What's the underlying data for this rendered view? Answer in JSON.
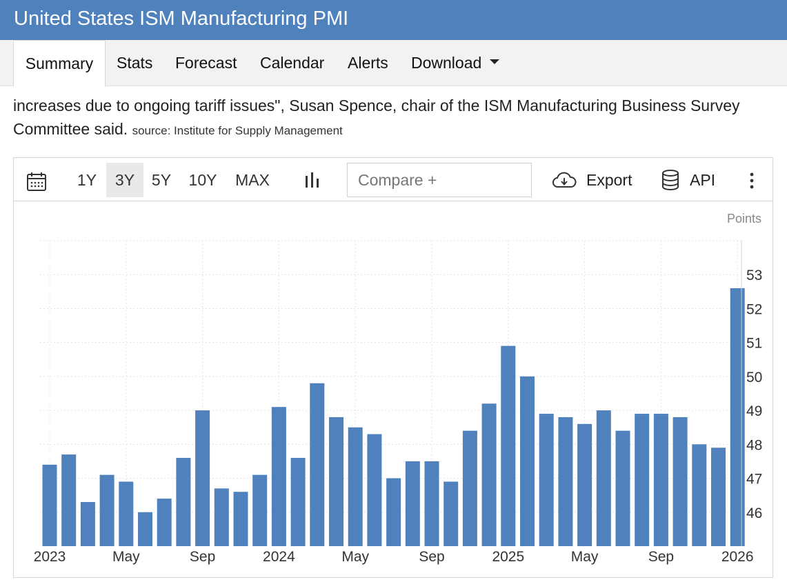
{
  "header": {
    "title": "United States ISM Manufacturing PMI"
  },
  "tabs": [
    {
      "label": "Summary",
      "active": true
    },
    {
      "label": "Stats"
    },
    {
      "label": "Forecast"
    },
    {
      "label": "Calendar"
    },
    {
      "label": "Alerts"
    },
    {
      "label": "Download"
    }
  ],
  "summary": {
    "line2": "increases due to ongoing tariff issues\", Susan Spence, chair of the ISM Manufacturing Business Survey",
    "line3": "Committee said.",
    "source": "source: Institute for Supply Management"
  },
  "toolbar": {
    "ranges": [
      "1Y",
      "3Y",
      "5Y",
      "10Y",
      "MAX"
    ],
    "active_range": "3Y",
    "compare_placeholder": "Compare +",
    "export_label": "Export",
    "api_label": "API",
    "icons": [
      "calendar-icon",
      "bar-chart-icon",
      "cloud-download-icon",
      "database-icon",
      "more-vertical-icon"
    ]
  },
  "chart_data": {
    "type": "bar",
    "units": "Points",
    "color": "#4f82bd",
    "ylim": [
      45,
      54
    ],
    "yticks": [
      46,
      47,
      48,
      49,
      50,
      51,
      52,
      53
    ],
    "x_tick_labels": [
      {
        "index": 0,
        "label": "2023"
      },
      {
        "index": 4,
        "label": "May"
      },
      {
        "index": 8,
        "label": "Sep"
      },
      {
        "index": 12,
        "label": "2024"
      },
      {
        "index": 16,
        "label": "May"
      },
      {
        "index": 20,
        "label": "Sep"
      },
      {
        "index": 24,
        "label": "2025"
      },
      {
        "index": 28,
        "label": "May"
      },
      {
        "index": 32,
        "label": "Sep"
      },
      {
        "index": 36,
        "label": "2026"
      }
    ],
    "categories": [
      "Jan 2023",
      "Feb 2023",
      "Mar 2023",
      "Apr 2023",
      "May 2023",
      "Jun 2023",
      "Jul 2023",
      "Aug 2023",
      "Sep 2023",
      "Oct 2023",
      "Nov 2023",
      "Dec 2023",
      "Jan 2024",
      "Feb 2024",
      "Mar 2024",
      "Apr 2024",
      "May 2024",
      "Jun 2024",
      "Jul 2024",
      "Aug 2024",
      "Sep 2024",
      "Oct 2024",
      "Nov 2024",
      "Dec 2024",
      "Jan 2025",
      "Feb 2025",
      "Mar 2025",
      "Apr 2025",
      "May 2025",
      "Jun 2025",
      "Jul 2025",
      "Aug 2025",
      "Sep 2025",
      "Oct 2025",
      "Nov 2025",
      "Dec 2025",
      "Jan 2026"
    ],
    "values": [
      47.4,
      47.7,
      46.3,
      47.1,
      46.9,
      46.0,
      46.4,
      47.6,
      49.0,
      46.7,
      46.6,
      47.1,
      49.1,
      47.6,
      49.8,
      48.8,
      48.5,
      48.3,
      47.0,
      47.5,
      47.5,
      46.9,
      48.4,
      49.2,
      50.9,
      50.0,
      48.9,
      48.8,
      48.6,
      49.0,
      48.4,
      48.9,
      48.9,
      48.8,
      48.0,
      47.9,
      52.6
    ],
    "grid": true,
    "legend": "none"
  }
}
